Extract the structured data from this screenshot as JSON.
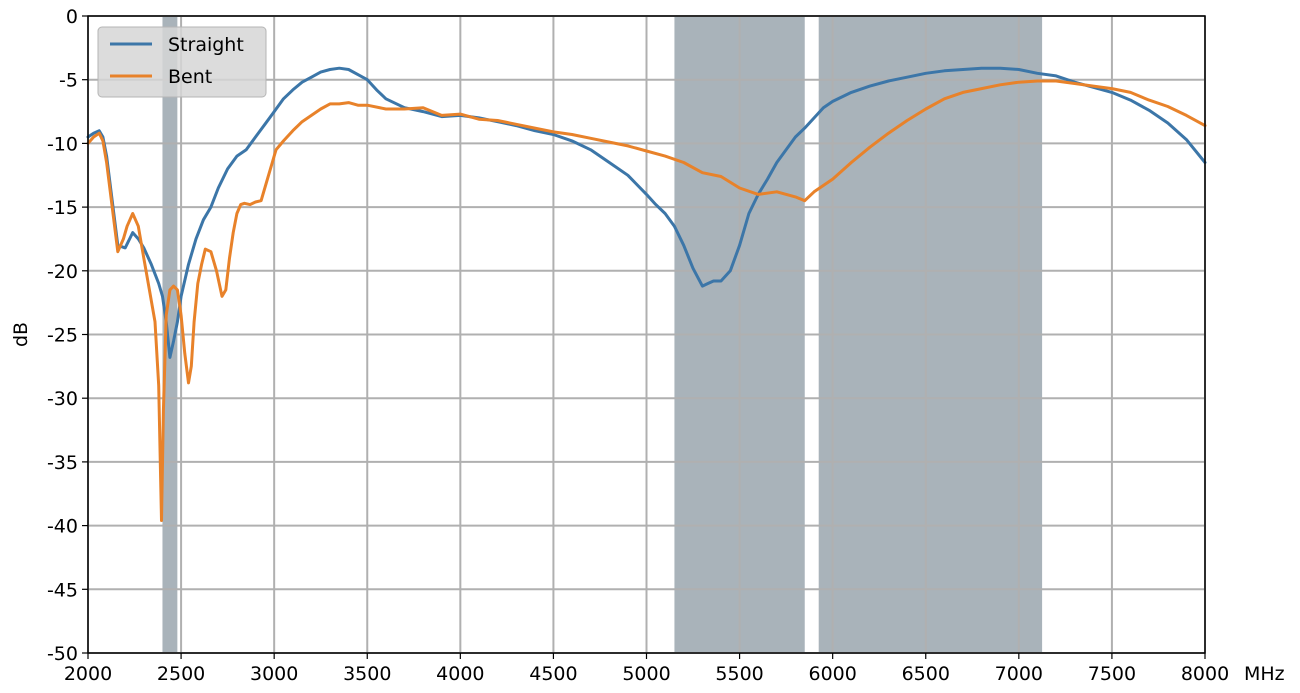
{
  "chart_data": {
    "type": "line",
    "title": "",
    "xlabel": "",
    "x_unit": "MHz",
    "ylabel": "dB",
    "xlim": [
      2000,
      8000
    ],
    "ylim": [
      -50,
      0
    ],
    "x_ticks": [
      "2000",
      "2500",
      "3000",
      "3500",
      "4000",
      "4500",
      "5000",
      "5500",
      "6000",
      "6500",
      "7000",
      "7500",
      "8000"
    ],
    "y_ticks": [
      "0",
      "-5",
      "-10",
      "-15",
      "-20",
      "-25",
      "-30",
      "-35",
      "-40",
      "-45",
      "-50"
    ],
    "grid": true,
    "legend_position": "top-left",
    "shaded_bands": [
      {
        "x0": 2400,
        "x1": 2480,
        "color": "#a9b3ba"
      },
      {
        "x0": 5150,
        "x1": 5850,
        "color": "#a9b3ba"
      },
      {
        "x0": 5925,
        "x1": 7125,
        "color": "#a9b3ba"
      }
    ],
    "series": [
      {
        "name": "Straight",
        "color": "#3c76a8",
        "x": [
          2000,
          2030,
          2060,
          2080,
          2100,
          2130,
          2160,
          2200,
          2240,
          2270,
          2300,
          2340,
          2380,
          2400,
          2420,
          2440,
          2460,
          2480,
          2500,
          2540,
          2580,
          2620,
          2660,
          2700,
          2750,
          2800,
          2850,
          2900,
          2950,
          3000,
          3050,
          3100,
          3150,
          3200,
          3250,
          3300,
          3350,
          3400,
          3450,
          3500,
          3550,
          3600,
          3700,
          3800,
          3900,
          4000,
          4100,
          4200,
          4300,
          4400,
          4500,
          4600,
          4700,
          4800,
          4900,
          5000,
          5050,
          5100,
          5150,
          5200,
          5250,
          5300,
          5330,
          5360,
          5400,
          5450,
          5500,
          5550,
          5600,
          5650,
          5700,
          5750,
          5800,
          5850,
          5900,
          5950,
          6000,
          6100,
          6200,
          6300,
          6400,
          6500,
          6600,
          6700,
          6800,
          6900,
          7000,
          7100,
          7200,
          7300,
          7400,
          7500,
          7600,
          7700,
          7800,
          7900,
          8000
        ],
        "y": [
          -9.5,
          -9.2,
          -9.0,
          -9.5,
          -11.0,
          -14.5,
          -18.0,
          -18.2,
          -17.0,
          -17.5,
          -18.2,
          -19.5,
          -21.0,
          -22.0,
          -24.0,
          -26.8,
          -25.5,
          -24.0,
          -22.0,
          -19.5,
          -17.5,
          -16.0,
          -15.0,
          -13.5,
          -12.0,
          -11.0,
          -10.5,
          -9.5,
          -8.5,
          -7.5,
          -6.5,
          -5.8,
          -5.2,
          -4.8,
          -4.4,
          -4.2,
          -4.1,
          -4.2,
          -4.6,
          -5.0,
          -5.8,
          -6.5,
          -7.2,
          -7.5,
          -7.9,
          -7.8,
          -8.0,
          -8.3,
          -8.6,
          -9.0,
          -9.3,
          -9.8,
          -10.5,
          -11.5,
          -12.5,
          -14.0,
          -14.8,
          -15.5,
          -16.5,
          -18.0,
          -19.8,
          -21.2,
          -21.0,
          -20.8,
          -20.8,
          -20.0,
          -18.0,
          -15.5,
          -14.0,
          -12.8,
          -11.5,
          -10.5,
          -9.5,
          -8.8,
          -8.0,
          -7.2,
          -6.7,
          -6.0,
          -5.5,
          -5.1,
          -4.8,
          -4.5,
          -4.3,
          -4.2,
          -4.1,
          -4.1,
          -4.2,
          -4.5,
          -4.7,
          -5.2,
          -5.6,
          -6.0,
          -6.6,
          -7.4,
          -8.4,
          -9.7,
          -11.5
        ]
      },
      {
        "name": "Bent",
        "color": "#e8822a",
        "x": [
          2000,
          2030,
          2060,
          2080,
          2100,
          2130,
          2160,
          2190,
          2210,
          2240,
          2270,
          2300,
          2330,
          2360,
          2380,
          2395,
          2405,
          2420,
          2440,
          2460,
          2480,
          2500,
          2520,
          2540,
          2555,
          2570,
          2590,
          2610,
          2630,
          2660,
          2690,
          2720,
          2740,
          2760,
          2780,
          2800,
          2820,
          2840,
          2870,
          2900,
          2930,
          2960,
          2990,
          3010,
          3050,
          3100,
          3150,
          3200,
          3250,
          3300,
          3350,
          3400,
          3450,
          3500,
          3600,
          3700,
          3800,
          3900,
          4000,
          4100,
          4200,
          4300,
          4400,
          4500,
          4600,
          4700,
          4800,
          4900,
          5000,
          5100,
          5200,
          5300,
          5400,
          5500,
          5600,
          5700,
          5800,
          5850,
          5900,
          6000,
          6100,
          6200,
          6300,
          6400,
          6500,
          6600,
          6700,
          6800,
          6900,
          7000,
          7100,
          7200,
          7300,
          7400,
          7500,
          7600,
          7700,
          7800,
          7900,
          8000
        ],
        "y": [
          -10.0,
          -9.5,
          -9.2,
          -9.8,
          -11.5,
          -15.0,
          -18.5,
          -17.5,
          -16.5,
          -15.5,
          -16.5,
          -19.0,
          -21.5,
          -24.0,
          -29.0,
          -39.6,
          -31.0,
          -23.5,
          -21.5,
          -21.2,
          -21.5,
          -23.5,
          -26.5,
          -28.8,
          -27.5,
          -24.0,
          -21.0,
          -19.5,
          -18.3,
          -18.5,
          -20.0,
          -22.0,
          -21.5,
          -19.0,
          -17.0,
          -15.5,
          -14.8,
          -14.7,
          -14.8,
          -14.6,
          -14.5,
          -13.0,
          -11.5,
          -10.5,
          -9.8,
          -9.0,
          -8.3,
          -7.8,
          -7.3,
          -6.9,
          -6.9,
          -6.8,
          -7.0,
          -7.0,
          -7.3,
          -7.3,
          -7.2,
          -7.8,
          -7.7,
          -8.1,
          -8.2,
          -8.5,
          -8.8,
          -9.1,
          -9.3,
          -9.6,
          -9.9,
          -10.2,
          -10.6,
          -11.0,
          -11.5,
          -12.3,
          -12.6,
          -13.5,
          -14.0,
          -13.8,
          -14.2,
          -14.5,
          -13.8,
          -12.8,
          -11.5,
          -10.3,
          -9.2,
          -8.2,
          -7.3,
          -6.5,
          -6.0,
          -5.7,
          -5.4,
          -5.2,
          -5.1,
          -5.1,
          -5.3,
          -5.5,
          -5.7,
          -6.0,
          -6.6,
          -7.1,
          -7.8,
          -8.6
        ]
      }
    ]
  }
}
